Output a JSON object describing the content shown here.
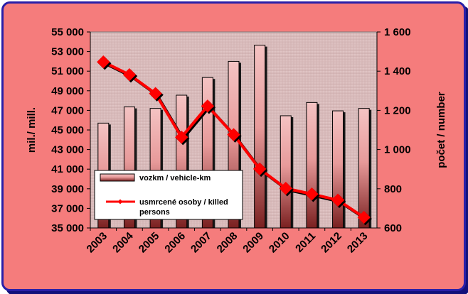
{
  "chart_data": {
    "type": "bar",
    "categories": [
      "2003",
      "2004",
      "2005",
      "2006",
      "2007",
      "2008",
      "2009",
      "2010",
      "2011",
      "2012",
      "2013"
    ],
    "series": [
      {
        "name": "vozkm / vehicle-km",
        "type": "bar",
        "axis": "left",
        "values": [
          45700,
          47350,
          47200,
          48550,
          50350,
          52000,
          53650,
          46450,
          47800,
          46950,
          47200
        ]
      },
      {
        "name": "usmrcené osoby / killed persons",
        "type": "line",
        "axis": "right",
        "values": [
          1447,
          1382,
          1286,
          1063,
          1222,
          1076,
          901,
          802,
          773,
          742,
          654
        ]
      }
    ],
    "ylabel": "mil./ mill.",
    "y2label": "počet / number",
    "ylim": [
      35000,
      55000
    ],
    "y2lim": [
      600,
      1600
    ],
    "yticks": [
      "35 000",
      "37 000",
      "39 000",
      "41 000",
      "43 000",
      "45 000",
      "47 000",
      "49 000",
      "51 000",
      "53 000",
      "55 000"
    ],
    "y2ticks": [
      "600",
      "800",
      "1 000",
      "1 200",
      "1 400",
      "1 600"
    ],
    "legend_position": "bottom-left",
    "grid": false,
    "colors": {
      "bar": "#e9a3a3",
      "bar_shadow": "#1a1a1a",
      "line": "#ff0000",
      "marker": "#ff0000",
      "frame": "#f57c7c",
      "border": "#2a1fa8",
      "plot_bg": "#d8bcbc"
    }
  }
}
